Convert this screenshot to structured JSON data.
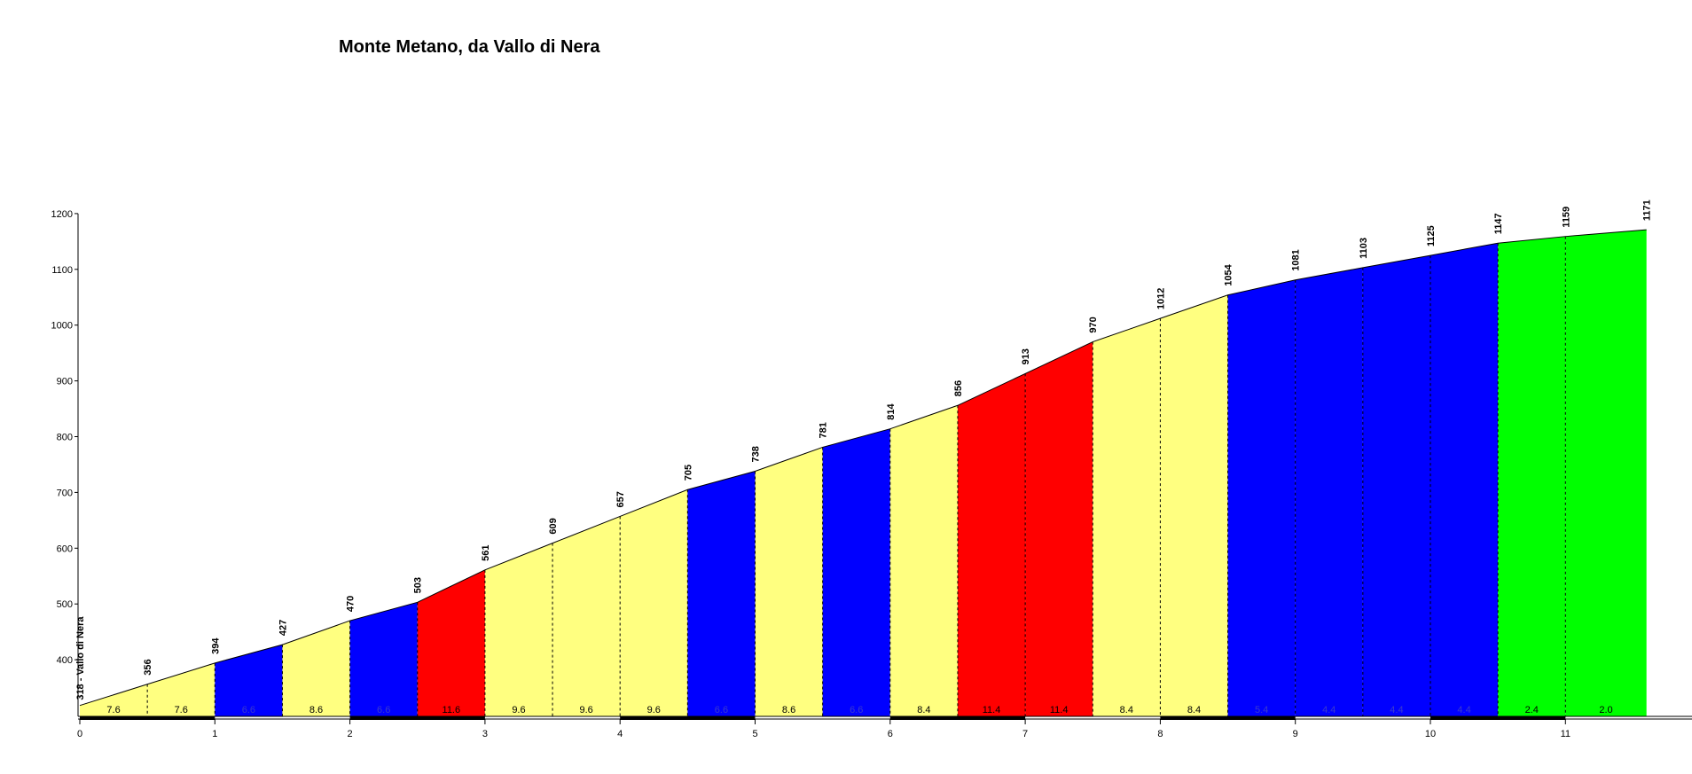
{
  "title": "Monte Metano, da Vallo di Nera",
  "chart_data": {
    "type": "area",
    "title": "Monte Metano, da Vallo di Nera",
    "xlabel": "",
    "ylabel": "",
    "xlim": [
      0,
      11.6
    ],
    "ylim": [
      300,
      1200
    ],
    "x_ticks": [
      0,
      1,
      2,
      3,
      4,
      5,
      6,
      7,
      8,
      9,
      10,
      11
    ],
    "y_ticks": [
      400,
      500,
      600,
      700,
      800,
      900,
      1000,
      1100,
      1200
    ],
    "grid": false,
    "points": [
      {
        "x": 0,
        "y": 318,
        "label": "318 - Vallo di Nera"
      },
      {
        "x": 0.5,
        "y": 356,
        "label": "356"
      },
      {
        "x": 1.0,
        "y": 394,
        "label": "394"
      },
      {
        "x": 1.5,
        "y": 427,
        "label": "427"
      },
      {
        "x": 2.0,
        "y": 470,
        "label": "470"
      },
      {
        "x": 2.5,
        "y": 503,
        "label": "503"
      },
      {
        "x": 3.0,
        "y": 561,
        "label": "561"
      },
      {
        "x": 3.5,
        "y": 609,
        "label": "609"
      },
      {
        "x": 4.0,
        "y": 657,
        "label": "657"
      },
      {
        "x": 4.5,
        "y": 705,
        "label": "705"
      },
      {
        "x": 5.0,
        "y": 738,
        "label": "738"
      },
      {
        "x": 5.5,
        "y": 781,
        "label": "781"
      },
      {
        "x": 6.0,
        "y": 814,
        "label": "814"
      },
      {
        "x": 6.5,
        "y": 856,
        "label": "856"
      },
      {
        "x": 7.0,
        "y": 913,
        "label": "913"
      },
      {
        "x": 7.5,
        "y": 970,
        "label": "970"
      },
      {
        "x": 8.0,
        "y": 1012,
        "label": "1012"
      },
      {
        "x": 8.5,
        "y": 1054,
        "label": "1054"
      },
      {
        "x": 9.0,
        "y": 1081,
        "label": "1081"
      },
      {
        "x": 9.5,
        "y": 1103,
        "label": "1103"
      },
      {
        "x": 10.0,
        "y": 1125,
        "label": "1125"
      },
      {
        "x": 10.5,
        "y": 1147,
        "label": "1147"
      },
      {
        "x": 11.0,
        "y": 1159,
        "label": "1159"
      },
      {
        "x": 11.6,
        "y": 1171,
        "label": "1171"
      }
    ],
    "segments": [
      {
        "grade": "7.6",
        "color": "#FFFF80"
      },
      {
        "grade": "7.6",
        "color": "#FFFF80"
      },
      {
        "grade": "6.6",
        "color": "#0000FF"
      },
      {
        "grade": "8.6",
        "color": "#FFFF80"
      },
      {
        "grade": "6.6",
        "color": "#0000FF"
      },
      {
        "grade": "11.6",
        "color": "#FF0000"
      },
      {
        "grade": "9.6",
        "color": "#FFFF80"
      },
      {
        "grade": "9.6",
        "color": "#FFFF80"
      },
      {
        "grade": "9.6",
        "color": "#FFFF80"
      },
      {
        "grade": "6.6",
        "color": "#0000FF"
      },
      {
        "grade": "8.6",
        "color": "#FFFF80"
      },
      {
        "grade": "6.6",
        "color": "#0000FF"
      },
      {
        "grade": "8.4",
        "color": "#FFFF80"
      },
      {
        "grade": "11.4",
        "color": "#FF0000"
      },
      {
        "grade": "11.4",
        "color": "#FF0000"
      },
      {
        "grade": "8.4",
        "color": "#FFFF80"
      },
      {
        "grade": "8.4",
        "color": "#FFFF80"
      },
      {
        "grade": "5.4",
        "color": "#0000FF"
      },
      {
        "grade": "4.4",
        "color": "#0000FF"
      },
      {
        "grade": "4.4",
        "color": "#0000FF"
      },
      {
        "grade": "4.4",
        "color": "#0000FF"
      },
      {
        "grade": "2.4",
        "color": "#00FF00"
      },
      {
        "grade": "2.0",
        "color": "#00FF00"
      }
    ]
  }
}
